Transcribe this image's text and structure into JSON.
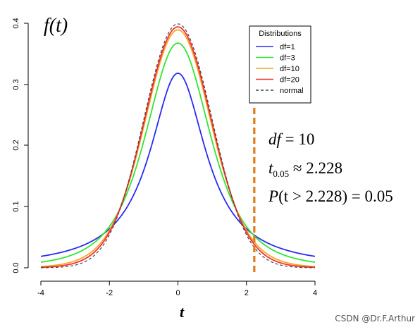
{
  "chart_data": {
    "type": "line",
    "title": "f(t)",
    "xlabel": "t",
    "ylabel": "",
    "xlim": [
      -4,
      4
    ],
    "ylim": [
      0,
      0.4
    ],
    "x_ticks": [
      -4,
      -2,
      0,
      2,
      4
    ],
    "y_ticks": [
      0.0,
      0.1,
      0.2,
      0.3,
      0.4
    ],
    "x_tick_labels": [
      "-4",
      "-2",
      "0",
      "2",
      "4"
    ],
    "y_tick_labels": [
      "0.0",
      "0.1",
      "0.2",
      "0.3",
      "0.4"
    ],
    "grid": false,
    "legend": {
      "title": "Distributions",
      "position": "top-right"
    },
    "series": [
      {
        "name": "df=1",
        "df": 1,
        "color": "#2a2af5",
        "style": "solid",
        "x": [
          -4,
          -3,
          -2,
          -1,
          0,
          1,
          2,
          3,
          4
        ],
        "values": [
          0.019,
          0.032,
          0.064,
          0.159,
          0.318,
          0.159,
          0.064,
          0.032,
          0.019
        ]
      },
      {
        "name": "df=3",
        "df": 3,
        "color": "#33e533",
        "style": "solid",
        "x": [
          -4,
          -3,
          -2,
          -1,
          0,
          1,
          2,
          3,
          4
        ],
        "values": [
          0.009,
          0.023,
          0.068,
          0.207,
          0.368,
          0.207,
          0.068,
          0.023,
          0.009
        ]
      },
      {
        "name": "df=10",
        "df": 10,
        "color": "#f5a623",
        "style": "solid",
        "x": [
          -4,
          -3,
          -2,
          -1,
          0,
          1,
          2,
          3,
          4
        ],
        "values": [
          0.002,
          0.011,
          0.061,
          0.23,
          0.389,
          0.23,
          0.061,
          0.011,
          0.002
        ]
      },
      {
        "name": "df=20",
        "df": 20,
        "color": "#f53030",
        "style": "solid",
        "x": [
          -4,
          -3,
          -2,
          -1,
          0,
          1,
          2,
          3,
          4
        ],
        "values": [
          0.001,
          0.008,
          0.058,
          0.236,
          0.394,
          0.236,
          0.058,
          0.008,
          0.001
        ]
      },
      {
        "name": "normal",
        "df": null,
        "color": "#444444",
        "style": "dashed",
        "x": [
          -4,
          -3,
          -2,
          -1,
          0,
          1,
          2,
          3,
          4
        ],
        "values": [
          0.0001,
          0.004,
          0.054,
          0.242,
          0.399,
          0.242,
          0.054,
          0.004,
          0.0001
        ]
      }
    ],
    "vline": {
      "x": 2.228,
      "color": "#e07b17",
      "style": "dashed"
    },
    "annotations": {
      "line1_var": "df",
      "line1_rest": " = 10",
      "line2_var": "t",
      "line2_sub": "0.05",
      "line2_rest": " ≈ 2.228",
      "line3_var": "P",
      "line3_rest": "(t > 2.228) = 0.05"
    }
  },
  "watermark": "CSDN @Dr.F.Arthur"
}
